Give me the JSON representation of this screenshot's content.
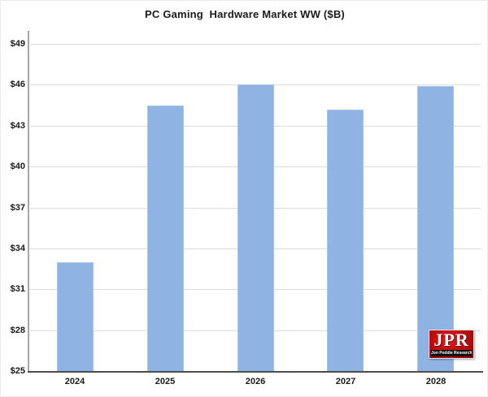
{
  "title": "PC Gaming  Hardware Market WW ($B)",
  "chart_data": {
    "type": "bar",
    "categories": [
      "2024",
      "2025",
      "2026",
      "2027",
      "2028"
    ],
    "values": [
      33.0,
      44.5,
      46.0,
      44.2,
      45.9
    ],
    "title": "PC Gaming  Hardware Market WW ($B)",
    "xlabel": "",
    "ylabel": "",
    "ylim": [
      25,
      49
    ],
    "ytick_step": 3,
    "ytick_labels": [
      "$25",
      "$28",
      "$31",
      "$34",
      "$37",
      "$40",
      "$43",
      "$46",
      "$49"
    ],
    "grid": true,
    "legend": "none",
    "bar_color": "#8FB3E2",
    "gridline_color": "#dcdcdc"
  },
  "logo": {
    "text": "JPR",
    "subtext": "Jon Peddie Research",
    "bg_color": "#C00000"
  }
}
